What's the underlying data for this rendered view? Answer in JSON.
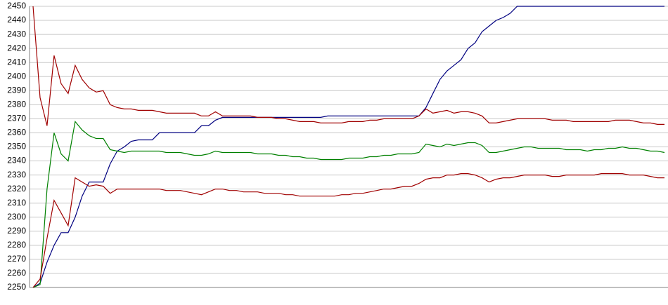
{
  "chart_data": {
    "type": "line",
    "categories": [
      null,
      null,
      null,
      null,
      null,
      null,
      null,
      null,
      null,
      null,
      null,
      null,
      null,
      null,
      null,
      null,
      null,
      null,
      null,
      null,
      null,
      null,
      null,
      null,
      null,
      null,
      null,
      null,
      null,
      null,
      null,
      null,
      null,
      null,
      null,
      null,
      null,
      null,
      null,
      null,
      null,
      null,
      null,
      null,
      null,
      null,
      null,
      null,
      null,
      null,
      null,
      null,
      null,
      null,
      null,
      null,
      null,
      null,
      null,
      null,
      null,
      null,
      null,
      null,
      null,
      null,
      null,
      null,
      null,
      null,
      null,
      null,
      null,
      null,
      null,
      null,
      null,
      null,
      null,
      null,
      null,
      null,
      null,
      null,
      null,
      null,
      null,
      null,
      null,
      null,
      null
    ],
    "ylim": [
      2250,
      2450
    ],
    "yticks": [
      2250,
      2260,
      2270,
      2280,
      2290,
      2300,
      2310,
      2320,
      2330,
      2340,
      2350,
      2360,
      2370,
      2380,
      2390,
      2400,
      2410,
      2420,
      2430,
      2440,
      2450
    ],
    "grid": true,
    "series": [
      {
        "color": "#000080",
        "values": [
          2250,
          2253,
          2268,
          2280,
          2289,
          2289,
          2300,
          2315,
          2325,
          2325,
          2325,
          2338,
          2347,
          2350,
          2354,
          2355,
          2355,
          2355,
          2360,
          2360,
          2360,
          2360,
          2360,
          2360,
          2365,
          2365,
          2369,
          2371,
          2371,
          2371,
          2371,
          2371,
          2371,
          2371,
          2371,
          2371,
          2371,
          2371,
          2371,
          2371,
          2371,
          2371,
          2372,
          2372,
          2372,
          2372,
          2372,
          2372,
          2372,
          2372,
          2372,
          2372,
          2372,
          2372,
          2372,
          2372,
          2378,
          2388,
          2398,
          2404,
          2408,
          2412,
          2420,
          2424,
          2432,
          2436,
          2440,
          2442,
          2445,
          2450,
          2450,
          2450,
          2450,
          2450,
          2450,
          2450,
          2450,
          2450,
          2450,
          2450,
          2450,
          2450,
          2450,
          2450,
          2450,
          2450,
          2450,
          2450,
          2450,
          2450,
          2450
        ]
      },
      {
        "color": "#a00000",
        "values": [
          2450,
          2385,
          2365,
          2415,
          2395,
          2388,
          2408,
          2398,
          2392,
          2389,
          2390,
          2380,
          2378,
          2377,
          2377,
          2376,
          2376,
          2376,
          2375,
          2374,
          2374,
          2374,
          2374,
          2374,
          2372,
          2372,
          2375,
          2372,
          2372,
          2372,
          2372,
          2372,
          2371,
          2371,
          2371,
          2370,
          2370,
          2369,
          2368,
          2368,
          2368,
          2367,
          2367,
          2367,
          2367,
          2368,
          2368,
          2368,
          2369,
          2369,
          2370,
          2370,
          2370,
          2370,
          2370,
          2372,
          2377,
          2374,
          2375,
          2376,
          2374,
          2375,
          2375,
          2374,
          2372,
          2367,
          2367,
          2368,
          2369,
          2370,
          2370,
          2370,
          2370,
          2370,
          2369,
          2369,
          2369,
          2368,
          2368,
          2368,
          2368,
          2368,
          2368,
          2369,
          2369,
          2369,
          2368,
          2367,
          2367,
          2366,
          2366
        ]
      },
      {
        "color": "#008000",
        "values": [
          2250,
          2252,
          2320,
          2360,
          2345,
          2340,
          2368,
          2362,
          2358,
          2356,
          2356,
          2348,
          2347,
          2346,
          2347,
          2347,
          2347,
          2347,
          2347,
          2346,
          2346,
          2346,
          2345,
          2344,
          2344,
          2345,
          2347,
          2346,
          2346,
          2346,
          2346,
          2346,
          2345,
          2345,
          2345,
          2344,
          2344,
          2343,
          2343,
          2342,
          2342,
          2341,
          2341,
          2341,
          2341,
          2342,
          2342,
          2342,
          2343,
          2343,
          2344,
          2344,
          2345,
          2345,
          2345,
          2346,
          2352,
          2351,
          2350,
          2352,
          2351,
          2352,
          2353,
          2353,
          2351,
          2346,
          2346,
          2347,
          2348,
          2349,
          2350,
          2350,
          2349,
          2349,
          2349,
          2349,
          2348,
          2348,
          2348,
          2347,
          2348,
          2348,
          2349,
          2349,
          2350,
          2349,
          2349,
          2348,
          2347,
          2347,
          2346
        ]
      },
      {
        "color": "#a00000",
        "values": [
          2250,
          2256,
          2285,
          2312,
          2303,
          2294,
          2328,
          2325,
          2322,
          2323,
          2322,
          2317,
          2320,
          2320,
          2320,
          2320,
          2320,
          2320,
          2320,
          2319,
          2319,
          2319,
          2318,
          2317,
          2316,
          2318,
          2320,
          2320,
          2319,
          2319,
          2318,
          2318,
          2318,
          2317,
          2317,
          2317,
          2316,
          2316,
          2315,
          2315,
          2315,
          2315,
          2315,
          2315,
          2316,
          2316,
          2317,
          2317,
          2318,
          2319,
          2320,
          2320,
          2321,
          2322,
          2322,
          2324,
          2327,
          2328,
          2328,
          2330,
          2330,
          2331,
          2331,
          2330,
          2328,
          2325,
          2327,
          2328,
          2328,
          2329,
          2330,
          2330,
          2330,
          2330,
          2329,
          2329,
          2330,
          2330,
          2330,
          2330,
          2330,
          2331,
          2331,
          2331,
          2331,
          2330,
          2330,
          2330,
          2329,
          2328,
          2328
        ]
      }
    ]
  }
}
